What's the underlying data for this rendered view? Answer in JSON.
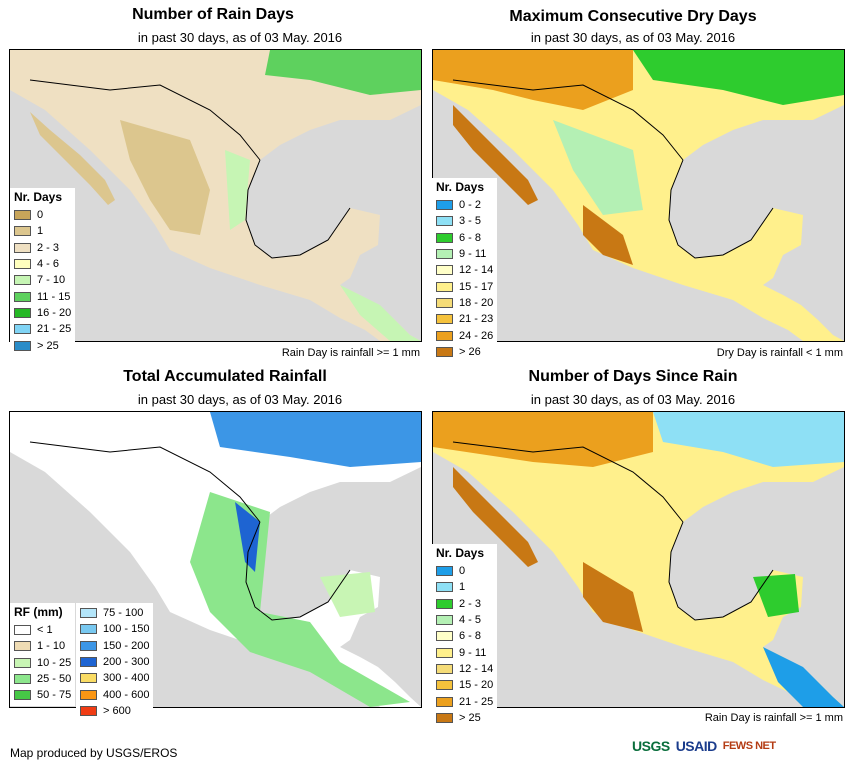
{
  "panels": [
    {
      "title": "Number of Rain Days",
      "subtitle": "in past 30 days, as of 03 May. 2016",
      "note": "Rain Day is rainfall >= 1 mm",
      "legend": {
        "title": "Nr. Days",
        "items": [
          {
            "label": "0",
            "color": "#c8a55a"
          },
          {
            "label": "1",
            "color": "#dcc68e"
          },
          {
            "label": "2 - 3",
            "color": "#efe0c2"
          },
          {
            "label": "4 - 6",
            "color": "#ffffbe"
          },
          {
            "label": "7 - 10",
            "color": "#c6f5b4"
          },
          {
            "label": "11 - 15",
            "color": "#5ed15e"
          },
          {
            "label": "16 - 20",
            "color": "#25b825"
          },
          {
            "label": "21 - 25",
            "color": "#80d4f5"
          },
          {
            "label": "> 25",
            "color": "#2a8cc8"
          }
        ]
      }
    },
    {
      "title": "Maximum Consecutive Dry Days",
      "subtitle": "in past 30 days, as of 03 May. 2016",
      "note": "Dry Day is rainfall < 1 mm",
      "legend": {
        "title": "Nr. Days",
        "items": [
          {
            "label": "0 - 2",
            "color": "#1e9ee8"
          },
          {
            "label": "3 - 5",
            "color": "#8ee0f5"
          },
          {
            "label": "6 - 8",
            "color": "#2ecc2e"
          },
          {
            "label": "9 - 11",
            "color": "#b4f0b4"
          },
          {
            "label": "12 - 14",
            "color": "#ffffc8"
          },
          {
            "label": "15 - 17",
            "color": "#fff08c"
          },
          {
            "label": "18 - 20",
            "color": "#f5dc78"
          },
          {
            "label": "21 - 23",
            "color": "#f5c23c"
          },
          {
            "label": "24 - 26",
            "color": "#eba01e"
          },
          {
            "label": "> 26",
            "color": "#c87814"
          }
        ]
      }
    },
    {
      "title": "Total Accumulated Rainfall",
      "subtitle": "in past 30 days, as of 03 May. 2016",
      "note": "",
      "legend": {
        "title": "RF (mm)",
        "items": [
          {
            "label": "< 1",
            "color": "#ffffff"
          },
          {
            "label": "1 - 10",
            "color": "#efdcb4"
          },
          {
            "label": "10 - 25",
            "color": "#c8f5b4"
          },
          {
            "label": "25 - 50",
            "color": "#8ce68c"
          },
          {
            "label": "50 - 75",
            "color": "#46c846"
          }
        ],
        "items2": [
          {
            "label": "75 - 100",
            "color": "#b4e6fa"
          },
          {
            "label": "100 - 150",
            "color": "#78c8f0"
          },
          {
            "label": "150 - 200",
            "color": "#3c96e6"
          },
          {
            "label": "200 - 300",
            "color": "#1e64d2"
          },
          {
            "label": "300 - 400",
            "color": "#fadc64"
          },
          {
            "label": "400 - 600",
            "color": "#fa9614"
          },
          {
            "label": "> 600",
            "color": "#f03c14"
          }
        ]
      }
    },
    {
      "title": "Number of Days Since Rain",
      "subtitle": "in past 30 days, as of 03 May. 2016",
      "note": "Rain Day is rainfall >= 1 mm",
      "legend": {
        "title": "Nr. Days",
        "items": [
          {
            "label": "0",
            "color": "#1e9ee8"
          },
          {
            "label": "1",
            "color": "#8ee0f5"
          },
          {
            "label": "2 - 3",
            "color": "#2ecc2e"
          },
          {
            "label": "4 - 5",
            "color": "#b4f0b4"
          },
          {
            "label": "6 - 8",
            "color": "#ffffc8"
          },
          {
            "label": "9 - 11",
            "color": "#fff08c"
          },
          {
            "label": "12 - 14",
            "color": "#f5dc78"
          },
          {
            "label": "15 - 20",
            "color": "#f5c23c"
          },
          {
            "label": "21 - 25",
            "color": "#eba01e"
          },
          {
            "label": "> 25",
            "color": "#c87814"
          }
        ]
      }
    }
  ],
  "footer": {
    "credit": "Map produced by USGS/EROS",
    "logos": [
      "USGS",
      "USAID",
      "FEWS NET"
    ]
  },
  "colors": {
    "ocean": "#d9d9d9",
    "land_outside": "#ffffff",
    "border": "#000000"
  }
}
